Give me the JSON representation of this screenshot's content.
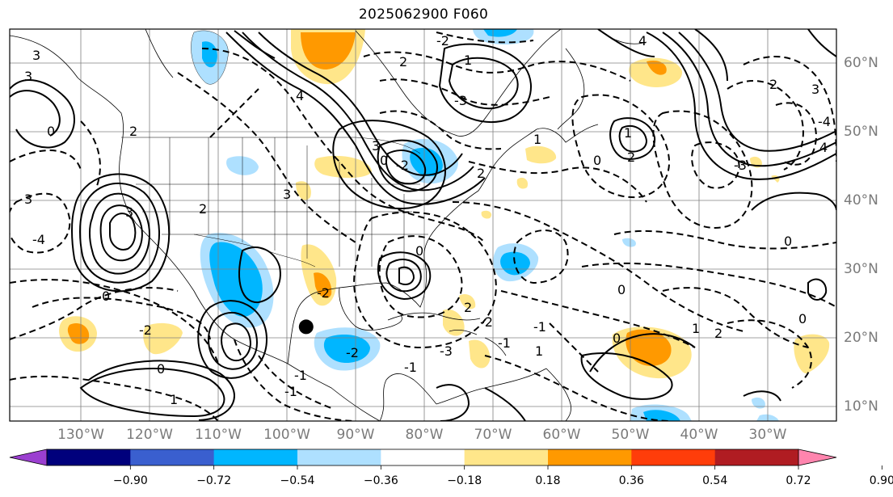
{
  "title": "2025062900 F060",
  "map": {
    "lon_labels": [
      "130°W",
      "120°W",
      "110°W",
      "100°W",
      "90°W",
      "80°W",
      "70°W",
      "60°W",
      "50°W",
      "40°W",
      "30°W"
    ],
    "lat_labels": [
      "60°N",
      "50°N",
      "40°N",
      "30°N",
      "20°N",
      "10°N"
    ],
    "marker": {
      "lon": -97.2,
      "lat": 21.6
    },
    "contour_labels": [
      "3",
      "3",
      "0",
      "0",
      "2",
      "3",
      "4",
      "2",
      "-2",
      "1",
      "-2",
      "-3",
      "1",
      "2",
      "3",
      "-2",
      "-4",
      "3",
      "4",
      "3",
      "2",
      "-3",
      "-1",
      "0",
      "-1",
      "1",
      "2",
      "4",
      "1",
      "0",
      "-2",
      "0",
      "0",
      "-3",
      "-2",
      "0",
      "1",
      "2",
      "-1",
      "0",
      "2",
      "-1",
      "2",
      "0",
      "3",
      "-2",
      "0",
      "-4",
      "1",
      "-1"
    ]
  },
  "colorbar": {
    "ticks": [
      "−0.90",
      "−0.72",
      "−0.54",
      "−0.36",
      "−0.18",
      "0.18",
      "0.36",
      "0.54",
      "0.72",
      "0.90"
    ],
    "colors": [
      "#9b3fd0",
      "#00007c",
      "#3a5fcf",
      "#00b6ff",
      "#aee0ff",
      "#ffffff",
      "#ffe68a",
      "#ff9900",
      "#ff3d0a",
      "#b01c22",
      "#ff85ae"
    ]
  }
}
